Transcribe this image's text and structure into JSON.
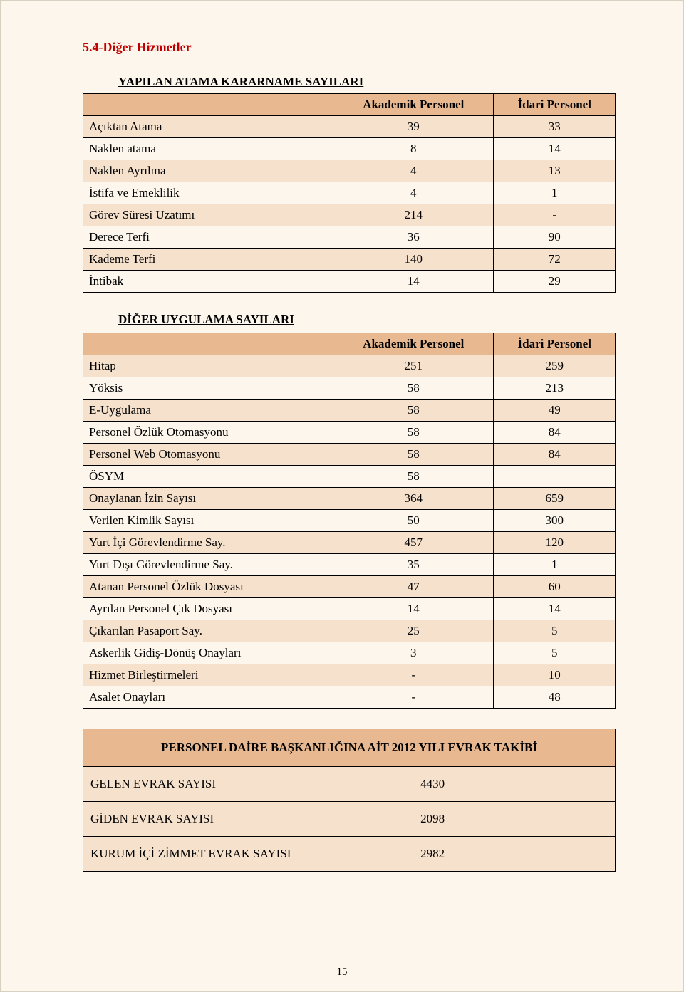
{
  "colors": {
    "page_bg": "#fdf6ec",
    "header_bg": "#e8b890",
    "row_tan": "#f6e2cc",
    "row_cream": "#fdf6ec",
    "border": "#000000",
    "title_red": "#c00000"
  },
  "section_title": "5.4-Diğer Hizmetler",
  "table1": {
    "title": "YAPILAN ATAMA KARARNAME SAYILARI",
    "headers": [
      "",
      "Akademik Personel",
      "İdari Personel"
    ],
    "rows": [
      {
        "label": "Açıktan Atama",
        "a": "39",
        "i": "33"
      },
      {
        "label": "Naklen atama",
        "a": "8",
        "i": "14"
      },
      {
        "label": "Naklen Ayrılma",
        "a": "4",
        "i": "13"
      },
      {
        "label": "İstifa ve Emeklilik",
        "a": "4",
        "i": "1"
      },
      {
        "label": "Görev Süresi Uzatımı",
        "a": "214",
        "i": "-"
      },
      {
        "label": "Derece Terfi",
        "a": "36",
        "i": "90"
      },
      {
        "label": "Kademe Terfi",
        "a": "140",
        "i": "72"
      },
      {
        "label": "İntibak",
        "a": "14",
        "i": "29"
      }
    ]
  },
  "table2": {
    "title": "DİĞER UYGULAMA SAYILARI",
    "headers": [
      "",
      "Akademik Personel",
      "İdari Personel"
    ],
    "rows": [
      {
        "label": "Hitap",
        "a": "251",
        "i": "259"
      },
      {
        "label": "Yöksis",
        "a": "58",
        "i": "213"
      },
      {
        "label": "E-Uygulama",
        "a": "58",
        "i": "49"
      },
      {
        "label": "Personel Özlük Otomasyonu",
        "a": "58",
        "i": "84"
      },
      {
        "label": "Personel Web Otomasyonu",
        "a": "58",
        "i": "84"
      },
      {
        "label": "ÖSYM",
        "a": "58",
        "i": ""
      },
      {
        "label": "Onaylanan İzin Sayısı",
        "a": "364",
        "i": "659"
      },
      {
        "label": "Verilen Kimlik Sayısı",
        "a": "50",
        "i": "300"
      },
      {
        "label": "Yurt İçi Görevlendirme Say.",
        "a": "457",
        "i": "120"
      },
      {
        "label": "Yurt Dışı Görevlendirme Say.",
        "a": "35",
        "i": "1"
      },
      {
        "label": "Atanan Personel Özlük Dosyası",
        "a": "47",
        "i": "60"
      },
      {
        "label": "Ayrılan Personel Çık Dosyası",
        "a": "14",
        "i": "14"
      },
      {
        "label": "Çıkarılan Pasaport Say.",
        "a": "25",
        "i": "5"
      },
      {
        "label": "Askerlik Gidiş-Dönüş Onayları",
        "a": "3",
        "i": "5"
      },
      {
        "label": "Hizmet Birleştirmeleri",
        "a": "-",
        "i": "10"
      },
      {
        "label": "Asalet Onayları",
        "a": "-",
        "i": "48"
      }
    ]
  },
  "table3": {
    "title": "PERSONEL DAİRE BAŞKANLIĞINA AİT 2012 YILI EVRAK TAKİBİ",
    "rows": [
      {
        "label": "GELEN EVRAK SAYISI",
        "val": "4430"
      },
      {
        "label": "GİDEN EVRAK SAYISI",
        "val": "2098"
      },
      {
        "label": "KURUM İÇİ ZİMMET EVRAK SAYISI",
        "val": "2982"
      }
    ]
  },
  "page_number": "15"
}
